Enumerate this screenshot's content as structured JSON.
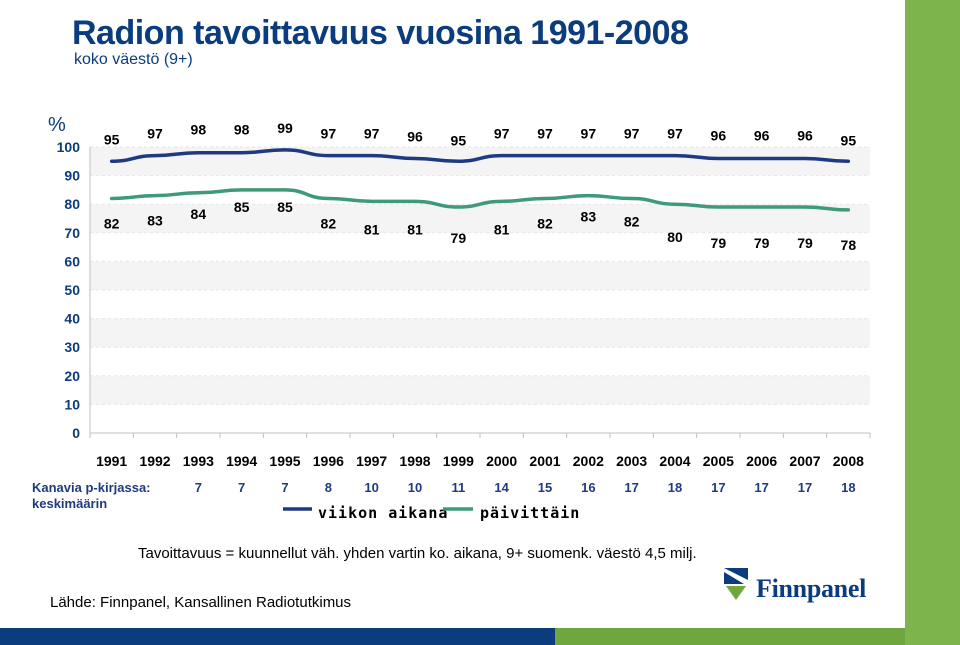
{
  "header": {
    "title": "Radion tavoittavuus vuosina 1991-2008",
    "subtitle": "koko väestö (9+)"
  },
  "chart_data": {
    "type": "line",
    "y_unit_label": "%",
    "ylim": [
      0,
      100
    ],
    "yticks": [
      0,
      10,
      20,
      30,
      40,
      50,
      60,
      70,
      80,
      90,
      100
    ],
    "categories": [
      "1991",
      "1992",
      "1993",
      "1994",
      "1995",
      "1996",
      "1997",
      "1998",
      "1999",
      "2000",
      "2001",
      "2002",
      "2003",
      "2004",
      "2005",
      "2006",
      "2007",
      "2008"
    ],
    "series": [
      {
        "name": "viikon aikana",
        "color": "#1f3a80",
        "values": [
          95,
          97,
          98,
          98,
          99,
          97,
          97,
          96,
          95,
          97,
          97,
          97,
          97,
          97,
          96,
          96,
          96,
          95
        ]
      },
      {
        "name": "päivittäin",
        "color": "#3f9a78",
        "values": [
          82,
          83,
          84,
          85,
          85,
          82,
          81,
          81,
          79,
          81,
          82,
          83,
          82,
          80,
          79,
          79,
          79,
          78
        ]
      }
    ],
    "grid": true,
    "legend": "bottom"
  },
  "channels": {
    "label_line1": "Kanavia p-kirjassa:",
    "label_line2": "keskimäärin",
    "values": [
      7,
      7,
      7,
      8,
      10,
      10,
      11,
      14,
      15,
      16,
      17,
      18,
      17,
      17,
      17,
      18
    ]
  },
  "footer": {
    "note": "Tavoittavuus = kuunnellut väh. yhden vartin ko. aikana, 9+ suomenk. väestö 4,5 milj.",
    "source": "Lähde: Finnpanel, Kansallinen Radiotutkimus",
    "logo_text": "Finnpanel"
  },
  "colors": {
    "brand_blue": "#0b3c7d",
    "brand_green": "#7db44c"
  },
  "icons": [
    "finnpanel-logo-icon"
  ]
}
